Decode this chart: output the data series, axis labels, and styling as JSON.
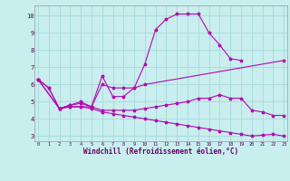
{
  "background_color": "#c8eeee",
  "grid_color": "#aadddd",
  "line_color": "#bb00bb",
  "xlabel": "Windchill (Refroidissement éolien,°C)",
  "xlim": [
    -0.3,
    23.3
  ],
  "ylim": [
    2.7,
    10.6
  ],
  "yticks": [
    3,
    4,
    5,
    6,
    7,
    8,
    9,
    10
  ],
  "xticks": [
    0,
    1,
    2,
    3,
    4,
    5,
    6,
    7,
    8,
    9,
    10,
    11,
    12,
    13,
    14,
    15,
    16,
    17,
    18,
    19,
    20,
    21,
    22,
    23
  ],
  "lines": [
    {
      "x": [
        0,
        1,
        2,
        3,
        4,
        5,
        6,
        7,
        8,
        9,
        10,
        11,
        12,
        13,
        14,
        15,
        16,
        17,
        18,
        19
      ],
      "y": [
        6.3,
        5.8,
        4.6,
        4.8,
        4.9,
        4.7,
        6.5,
        5.3,
        5.3,
        5.8,
        7.2,
        9.2,
        9.8,
        10.1,
        10.1,
        10.1,
        9.0,
        8.3,
        7.5,
        7.4
      ]
    },
    {
      "x": [
        0,
        1,
        2,
        3,
        4,
        5,
        6,
        7,
        8,
        9,
        10,
        23
      ],
      "y": [
        6.3,
        5.8,
        4.6,
        4.8,
        5.0,
        4.7,
        6.0,
        5.8,
        5.8,
        5.8,
        6.0,
        7.4
      ]
    },
    {
      "x": [
        0,
        2,
        3,
        4,
        5,
        6,
        7,
        8,
        9,
        10,
        11,
        12,
        13,
        14,
        15,
        16,
        17,
        18,
        19,
        20,
        21,
        22,
        23
      ],
      "y": [
        6.3,
        4.6,
        4.7,
        4.7,
        4.7,
        4.5,
        4.5,
        4.5,
        4.5,
        4.6,
        4.7,
        4.8,
        4.9,
        5.0,
        5.2,
        5.2,
        5.4,
        5.2,
        5.2,
        4.5,
        4.4,
        4.2,
        4.2
      ]
    },
    {
      "x": [
        0,
        2,
        3,
        4,
        5,
        6,
        7,
        8,
        9,
        10,
        11,
        12,
        13,
        14,
        15,
        16,
        17,
        18,
        19,
        20,
        21,
        22,
        23
      ],
      "y": [
        6.3,
        4.6,
        4.7,
        4.7,
        4.6,
        4.4,
        4.3,
        4.2,
        4.1,
        4.0,
        3.9,
        3.8,
        3.7,
        3.6,
        3.5,
        3.4,
        3.3,
        3.2,
        3.1,
        3.0,
        3.05,
        3.1,
        3.0
      ]
    }
  ]
}
